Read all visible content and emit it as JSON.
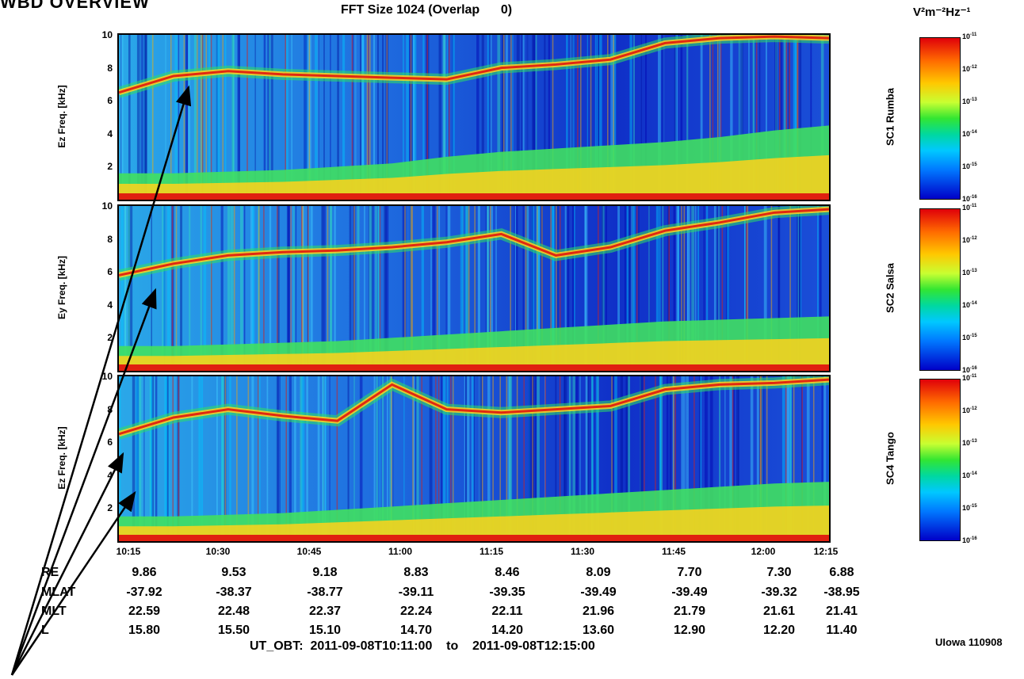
{
  "header_left": "WBD OVERVIEW",
  "title": "FFT Size 1024 (Overlap      0)",
  "colorbar_unit": "V²m⁻²Hz⁻¹",
  "credit": "UIowa 110908",
  "time_range": "UT_OBT:  2011-09-08T10:11:00    to    2011-09-08T12:15:00",
  "chart_data": {
    "type": "heatmap",
    "title": "FFT Size 1024 (Overlap      0)",
    "x_ticks": [
      "10:15",
      "10:30",
      "10:45",
      "11:00",
      "11:15",
      "11:30",
      "11:45",
      "12:00",
      "12:15"
    ],
    "y_ticks": [
      "2",
      "4",
      "6",
      "8",
      "10"
    ],
    "ylim": [
      0,
      10
    ],
    "colorbar_ticks": [
      "10-11",
      "10-12",
      "10-13",
      "10-14",
      "10-15",
      "10-16"
    ],
    "colorbar_exponents": [
      "-11",
      "-12",
      "-13",
      "-14",
      "-15",
      "-16"
    ],
    "panels": [
      {
        "ylabel": "Ez Freq. [kHz]",
        "spacecraft": "SC1 Rumba",
        "band_freq_khz": [
          6.5,
          7.5,
          7.8,
          7.6,
          7.5,
          7.4,
          7.3,
          8.0,
          8.2,
          8.5,
          9.5,
          9.8,
          9.9,
          9.8
        ],
        "low_band_top_khz": [
          1.6,
          1.6,
          1.7,
          1.8,
          2.0,
          2.2,
          2.6,
          2.9,
          3.1,
          3.3,
          3.5,
          3.8,
          4.2,
          4.5
        ]
      },
      {
        "ylabel": "Ey Freq. [kHz]",
        "spacecraft": "SC2 Salsa",
        "band_freq_khz": [
          5.8,
          6.5,
          7.0,
          7.2,
          7.3,
          7.5,
          7.8,
          8.3,
          7.0,
          7.5,
          8.5,
          9.0,
          9.6,
          9.8
        ],
        "low_band_top_khz": [
          1.5,
          1.5,
          1.6,
          1.7,
          1.8,
          2.0,
          2.2,
          2.4,
          2.6,
          2.8,
          3.0,
          3.1,
          3.2,
          3.3
        ]
      },
      {
        "ylabel": "Ez Freq. [kHz]",
        "spacecraft": "SC4 Tango",
        "band_freq_khz": [
          6.5,
          7.5,
          8.0,
          7.6,
          7.3,
          9.5,
          8.0,
          7.8,
          8.0,
          8.2,
          9.2,
          9.5,
          9.6,
          9.8
        ],
        "low_band_top_khz": [
          1.5,
          1.5,
          1.6,
          1.7,
          1.9,
          2.1,
          2.3,
          2.5,
          2.7,
          2.9,
          3.1,
          3.3,
          3.5,
          3.6
        ]
      }
    ]
  },
  "ephemeris": [
    {
      "label": "RE",
      "values": [
        "9.86",
        "9.53",
        "9.18",
        "8.83",
        "8.46",
        "8.09",
        "7.70",
        "7.30",
        "6.88"
      ]
    },
    {
      "label": "MLAT",
      "values": [
        "-37.92",
        "-38.37",
        "-38.77",
        "-39.11",
        "-39.35",
        "-39.49",
        "-39.49",
        "-39.32",
        "-38.95"
      ]
    },
    {
      "label": "MLT",
      "values": [
        "22.59",
        "22.48",
        "22.37",
        "22.24",
        "22.11",
        "21.96",
        "21.79",
        "21.61",
        "21.41"
      ]
    },
    {
      "label": "L",
      "values": [
        "15.80",
        "15.50",
        "15.10",
        "14.70",
        "14.20",
        "13.60",
        "12.90",
        "12.20",
        "11.40"
      ]
    }
  ]
}
